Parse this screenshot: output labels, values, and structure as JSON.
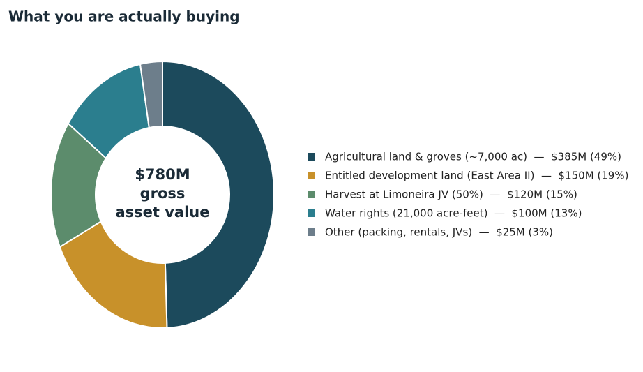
{
  "chart_data": {
    "type": "donut",
    "title": "What you are actually buying",
    "center_text": [
      "$780M",
      "gross",
      "asset value"
    ],
    "categories": [
      "Agricultural land & groves (~7,000 ac)  —  $385M (49%)",
      "Entitled development land (East Area II)  —  $150M (19%)",
      "Harvest at Limoneira JV (50%)  —  $120M (15%)",
      "Water rights (21,000 acre-feet)  —  $100M (13%)",
      "Other (packing, rentals, JVs)  —  $25M (3%)"
    ],
    "values": [
      385,
      150,
      120,
      100,
      25
    ],
    "colors": [
      "#1c4a5c",
      "#c8912a",
      "#5c8c6c",
      "#2b7e8e",
      "#6d7e8b"
    ],
    "legend": "right"
  }
}
